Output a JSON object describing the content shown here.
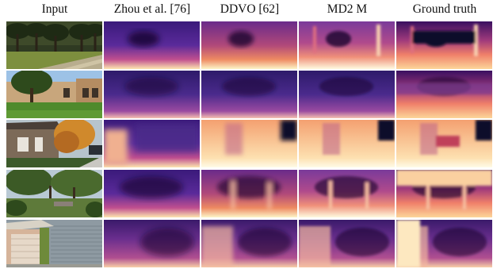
{
  "figure": {
    "columns": [
      {
        "label": "Input"
      },
      {
        "label": "Zhou et al. [76]"
      },
      {
        "label": "DDVO [62]"
      },
      {
        "label": "MD2 M"
      },
      {
        "label": "Ground truth"
      }
    ],
    "rows": [
      {
        "scene": "park-with-oak-trees-and-path"
      },
      {
        "scene": "house-with-lawn-and-tree"
      },
      {
        "scene": "house-with-autumn-tree-and-car"
      },
      {
        "scene": "garden-with-trees-and-bench"
      },
      {
        "scene": "garage-door-and-siding"
      }
    ]
  },
  "colors": {
    "depth_far": "#0d0829",
    "depth_mid": "#8e3b91",
    "depth_near": "#fcfdbf",
    "depth_warm": "#f57c5c"
  }
}
